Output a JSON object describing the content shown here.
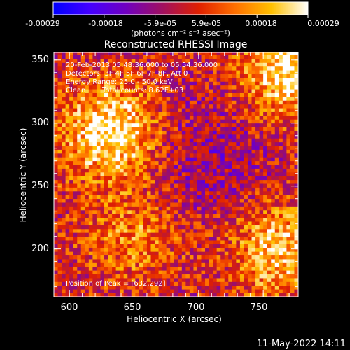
{
  "colorbar": {
    "ticks": [
      "-0.00029",
      "-0.00018",
      "-5.9e-05",
      "5.9e-05",
      "0.00018",
      "0.00029"
    ],
    "unit_label": "(photons cm⁻² s⁻¹ asec⁻²)",
    "stops": [
      "#0000ff",
      "#4400ff",
      "#7000c0",
      "#a01060",
      "#e02000",
      "#ff7000",
      "#ffc000",
      "#ffffff"
    ]
  },
  "plot": {
    "title": "Reconstructed RHESSI Image",
    "xlabel": "Heliocentric X (arcsec)",
    "ylabel": "Heliocentric Y (arcsec)",
    "x_ticks": [
      "600",
      "650",
      "700",
      "750"
    ],
    "y_ticks": [
      "200",
      "250",
      "300",
      "350"
    ],
    "xlim": [
      588,
      777
    ],
    "ylim": [
      162,
      356
    ]
  },
  "annotations": {
    "time_range": "20-Feb-2013 05:48:36.000 to 05:54:36.000",
    "detectors": "Detectors: 3F 4F 5F 6F 7F 8F, Att 0",
    "energy": "Energy Range: 25.0 - 50.0 keV",
    "clean": "Clean",
    "counts": "Total counts: 8.62E+03",
    "peak": "Position of Peak = [632,292]"
  },
  "footer": {
    "date": "11-May-2022 14:11"
  },
  "chart_data": {
    "type": "heatmap",
    "title": "Reconstructed RHESSI Image",
    "xlabel": "Heliocentric X (arcsec)",
    "ylabel": "Heliocentric Y (arcsec)",
    "xlim": [
      588,
      777
    ],
    "ylim": [
      162,
      356
    ],
    "x_ticks": [
      600,
      650,
      700,
      750
    ],
    "y_ticks": [
      200,
      250,
      300,
      350
    ],
    "color_range": [
      -0.00029,
      0.00029
    ],
    "colorbar_ticks": [
      -0.00029,
      -0.00018,
      -5.9e-05,
      5.9e-05,
      0.00018,
      0.00029
    ],
    "peak_position": [
      632,
      292
    ],
    "bright_regions": [
      {
        "x": 632,
        "y": 292,
        "level": 0.00029
      },
      {
        "x": 768,
        "y": 340,
        "level": 0.00027
      },
      {
        "x": 760,
        "y": 200,
        "level": 0.00022
      },
      {
        "x": 650,
        "y": 210,
        "level": 0.00015
      }
    ]
  }
}
